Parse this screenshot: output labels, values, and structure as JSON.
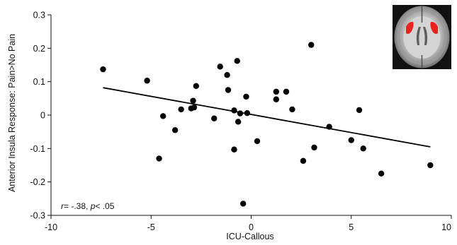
{
  "chart_data": {
    "type": "scatter",
    "xlabel": "ICU-Callous",
    "ylabel": "Anterior Insula Response: Pain>No Pain",
    "xlim": [
      -10,
      10
    ],
    "ylim": [
      -0.3,
      0.3
    ],
    "x_ticks": [
      "-10",
      "-5",
      "0",
      "5",
      "10"
    ],
    "y_ticks": [
      "0.3",
      "0.2",
      "0.1",
      "0",
      "-0.1",
      "-0.2",
      "-0.3"
    ],
    "grid": false,
    "legend": "none",
    "annotation": {
      "r_symbol": "r",
      "r_value": "= -.38, ",
      "p_symbol": "p",
      "p_value": "< .05"
    },
    "inset_image": "axial brain slice with bilateral anterior insula highlighted",
    "highlight_color": "#e8231f",
    "point_color": "#000000",
    "points": [
      {
        "x": -7.4,
        "y": 0.137
      },
      {
        "x": -5.2,
        "y": 0.103
      },
      {
        "x": -4.6,
        "y": -0.13
      },
      {
        "x": -4.4,
        "y": -0.003
      },
      {
        "x": -3.8,
        "y": -0.045
      },
      {
        "x": -3.5,
        "y": 0.017
      },
      {
        "x": -3.0,
        "y": 0.02
      },
      {
        "x": -2.9,
        "y": 0.043
      },
      {
        "x": -2.85,
        "y": 0.023
      },
      {
        "x": -2.75,
        "y": 0.087
      },
      {
        "x": -1.85,
        "y": -0.01
      },
      {
        "x": -1.55,
        "y": 0.145
      },
      {
        "x": -1.2,
        "y": 0.12
      },
      {
        "x": -1.15,
        "y": 0.075
      },
      {
        "x": -0.85,
        "y": 0.014
      },
      {
        "x": -0.85,
        "y": -0.103
      },
      {
        "x": -0.7,
        "y": 0.162
      },
      {
        "x": -0.65,
        "y": -0.02
      },
      {
        "x": -0.55,
        "y": 0.005
      },
      {
        "x": -0.4,
        "y": -0.265
      },
      {
        "x": -0.25,
        "y": 0.055
      },
      {
        "x": -0.2,
        "y": 0.006
      },
      {
        "x": 0.3,
        "y": -0.078
      },
      {
        "x": 1.25,
        "y": 0.07
      },
      {
        "x": 1.25,
        "y": 0.047
      },
      {
        "x": 1.75,
        "y": 0.07
      },
      {
        "x": 2.05,
        "y": 0.017
      },
      {
        "x": 2.6,
        "y": -0.137
      },
      {
        "x": 3.0,
        "y": 0.21
      },
      {
        "x": 3.15,
        "y": -0.097
      },
      {
        "x": 3.9,
        "y": -0.035
      },
      {
        "x": 5.0,
        "y": -0.075
      },
      {
        "x": 5.4,
        "y": 0.015
      },
      {
        "x": 5.6,
        "y": -0.1
      },
      {
        "x": 6.5,
        "y": -0.175
      },
      {
        "x": 8.95,
        "y": -0.15
      }
    ],
    "fit_line": [
      {
        "x": -7.4,
        "y": 0.082
      },
      {
        "x": 8.95,
        "y": -0.095
      }
    ]
  }
}
